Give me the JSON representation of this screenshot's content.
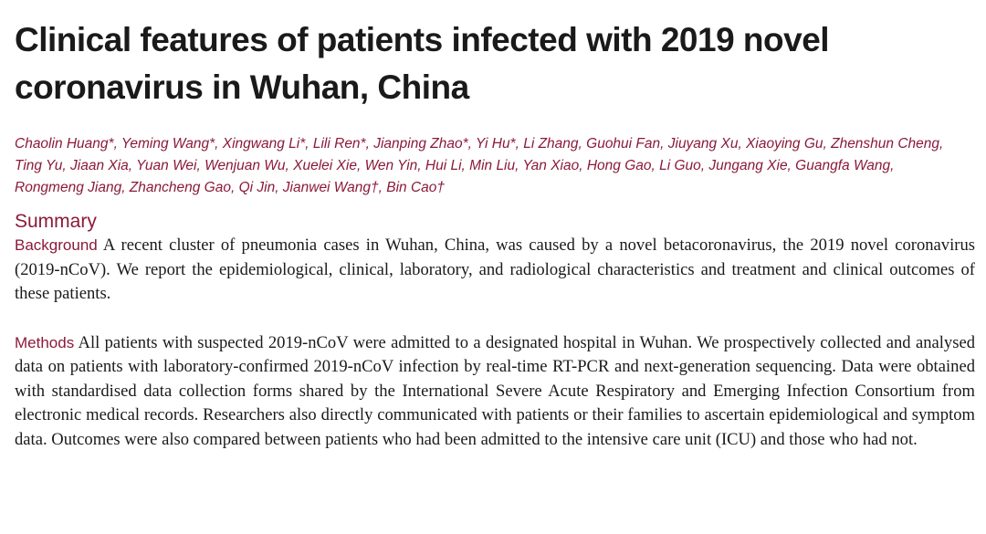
{
  "article": {
    "title": "Clinical features of patients infected with 2019 novel coronavirus in Wuhan, China",
    "authors": "Chaolin Huang*, Yeming Wang*, Xingwang Li*, Lili Ren*, Jianping Zhao*, Yi Hu*, Li Zhang, Guohui Fan, Jiuyang Xu, Xiaoying Gu, Zhenshun Cheng, Ting Yu, Jiaan Xia, Yuan Wei, Wenjuan Wu, Xuelei Xie, Wen Yin, Hui Li, Min Liu, Yan Xiao, Hong Gao, Li Guo, Jungang Xie, Guangfa Wang, Rongmeng Jiang, Zhancheng Gao, Qi Jin, Jianwei Wang†, Bin Cao†"
  },
  "summary": {
    "heading": "Summary",
    "background": {
      "label": "Background",
      "text": "A recent cluster of pneumonia cases in Wuhan, China, was caused by a novel betacoronavirus, the 2019 novel coronavirus (2019-nCoV). We report the epidemiological, clinical, laboratory, and radiological characteristics and treatment and clinical outcomes of these patients."
    },
    "methods": {
      "label": "Methods",
      "text": "All patients with suspected 2019-nCoV were admitted to a designated hospital in Wuhan. We prospectively collected and analysed data on patients with laboratory-confirmed 2019-nCoV infection by real-time RT-PCR and next-generation sequencing. Data were obtained with standardised data collection forms shared by the International Severe Acute Respiratory and Emerging Infection Consortium from electronic medical records. Researchers also directly communicated with patients or their families to ascertain epidemiological and symptom data. Outcomes were also compared between patients who had been admitted to the intensive care unit (ICU) and those who had not."
    }
  },
  "colors": {
    "accent": "#8b1a3a",
    "text": "#1a1a1a",
    "background": "#ffffff"
  }
}
